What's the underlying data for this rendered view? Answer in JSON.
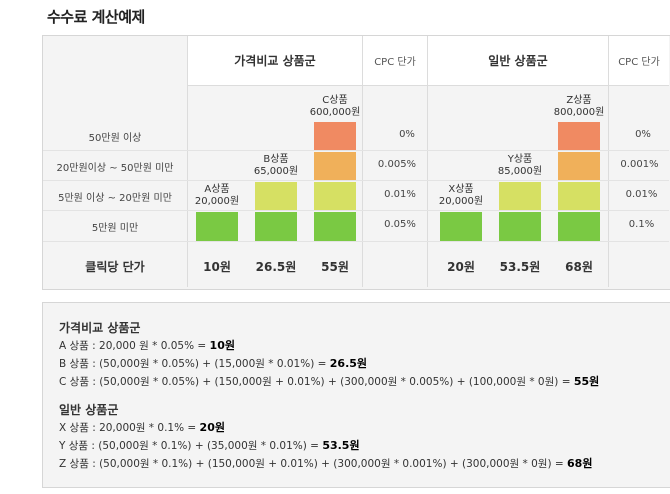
{
  "title": "수수료 계산예제",
  "header": {
    "group1": "가격비교 상품군",
    "cpc1": "CPC 단가",
    "group2": "일반 상품군",
    "cpc2": "CPC 단가"
  },
  "rows": [
    "50만원 이상",
    "20만원이상 ~ 50만원 미만",
    "5만원 이상 ~ 20만원 미만",
    "5만원 미만"
  ],
  "cpc_left": [
    "0%",
    "0.005%",
    "0.01%",
    "0.05%"
  ],
  "cpc_right": [
    "0%",
    "0.001%",
    "0.01%",
    "0.1%"
  ],
  "products": {
    "a": {
      "name": "A상품",
      "price": "20,000원"
    },
    "b": {
      "name": "B상품",
      "price": "65,000원"
    },
    "c": {
      "name": "C상품",
      "price": "600,000원"
    },
    "x": {
      "name": "X상품",
      "price": "20,000원"
    },
    "y": {
      "name": "Y상품",
      "price": "85,000원"
    },
    "z": {
      "name": "Z상품",
      "price": "800,000원"
    }
  },
  "click_label": "클릭당 단가",
  "click_prices": [
    "10원",
    "26.5원",
    "55원",
    "20원",
    "53.5원",
    "68원"
  ],
  "colors": {
    "green": "#7ac943",
    "yellow": "#d6e063",
    "orange": "#f0b05a",
    "red": "#f08a62"
  },
  "calc": {
    "group1_title": "가격비교 상품군",
    "group1": [
      {
        "text": "A 상품 : 20,000 원 * 0.05% = ",
        "result": "10원"
      },
      {
        "text": "B 상품 : (50,000원 * 0.05%) + (15,000원 * 0.01%) = ",
        "result": "26.5원"
      },
      {
        "text": "C 상품 : (50,000원 * 0.05%) + (150,000원 + 0.01%) + (300,000원 * 0.005%) + (100,000원 * 0원) = ",
        "result": "55원"
      }
    ],
    "group2_title": "일반 상품군",
    "group2": [
      {
        "text": "X 상품 : 20,000원 * 0.1% = ",
        "result": "20원"
      },
      {
        "text": "Y 상품 : (50,000원 * 0.1%) + (35,000원 * 0.01%) = ",
        "result": "53.5원"
      },
      {
        "text": "Z 상품 : (50,000원 * 0.1%) + (150,000원 + 0.01%) + (300,000원 * 0.001%) + (300,000원 * 0원) = ",
        "result": "68원"
      }
    ]
  }
}
